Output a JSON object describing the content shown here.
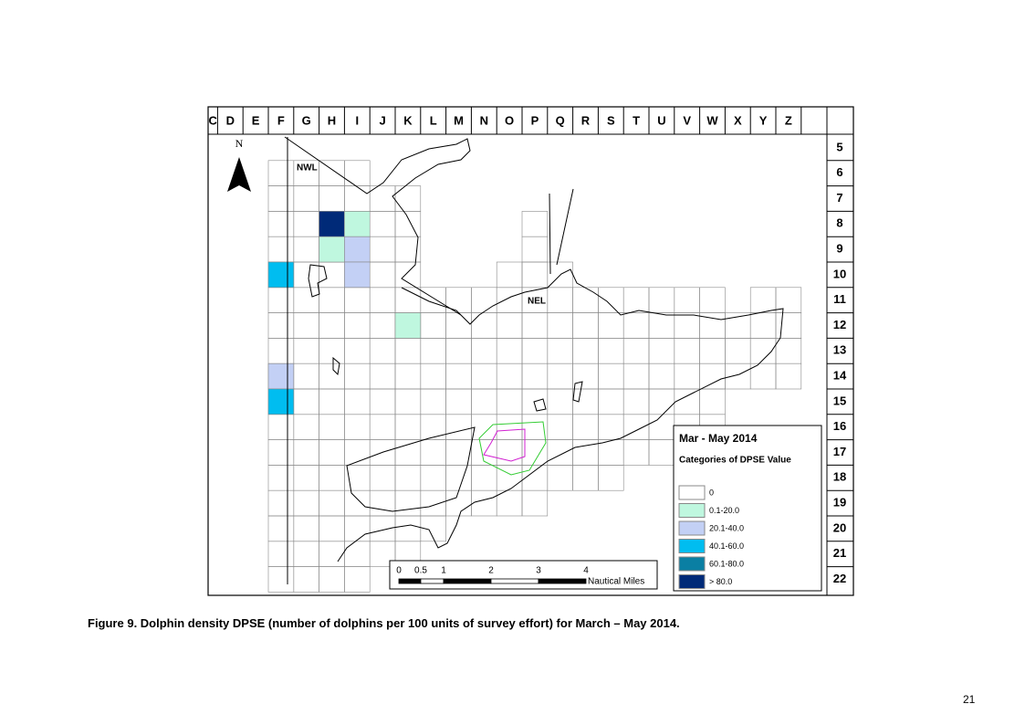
{
  "map": {
    "column_labels": [
      "C",
      "D",
      "E",
      "F",
      "G",
      "H",
      "I",
      "J",
      "K",
      "L",
      "M",
      "N",
      "O",
      "P",
      "Q",
      "R",
      "S",
      "T",
      "U",
      "V",
      "W",
      "X",
      "Y",
      "Z"
    ],
    "row_labels": [
      "5",
      "6",
      "7",
      "8",
      "9",
      "10",
      "11",
      "12",
      "13",
      "14",
      "15",
      "16",
      "17",
      "18",
      "19",
      "20",
      "21",
      "22"
    ],
    "north_label": "N",
    "place_labels": [
      "NWL",
      "NEL"
    ],
    "shaded_cells": [
      {
        "column": "H",
        "row": "8",
        "class": "> 80.0"
      },
      {
        "column": "I",
        "row": "8",
        "class": "0.1-20.0"
      },
      {
        "column": "H",
        "row": "9",
        "class": "0.1-20.0"
      },
      {
        "column": "I",
        "row": "9",
        "class": "20.1-40.0"
      },
      {
        "column": "F",
        "row": "10",
        "class": "40.1-60.0"
      },
      {
        "column": "I",
        "row": "10",
        "class": "20.1-40.0"
      },
      {
        "column": "K",
        "row": "12",
        "class": "0.1-20.0"
      },
      {
        "column": "F",
        "row": "14",
        "class": "20.1-40.0"
      },
      {
        "column": "F",
        "row": "15",
        "class": "40.1-60.0"
      }
    ],
    "legend": {
      "title": "Mar - May 2014",
      "subtitle": "Categories of DPSE Value",
      "classes": [
        {
          "label": "0",
          "color": "#ffffff"
        },
        {
          "label": "0.1-20.0",
          "color": "#bff7df"
        },
        {
          "label": "20.1-40.0",
          "color": "#c3d0f5"
        },
        {
          "label": "40.1-60.0",
          "color": "#00bdf0"
        },
        {
          "label": "60.1-80.0",
          "color": "#0a7fa3"
        },
        {
          "label": "> 80.0",
          "color": "#002a78"
        }
      ]
    },
    "scale_bar": {
      "ticks": [
        "0",
        "0.5",
        "1",
        "2",
        "3",
        "4"
      ],
      "unit": "Nautical Miles"
    }
  },
  "caption": "Figure 9. Dolphin density DPSE (number of dolphins per 100 units of survey effort) for March – May 2014.",
  "page_number": "21"
}
